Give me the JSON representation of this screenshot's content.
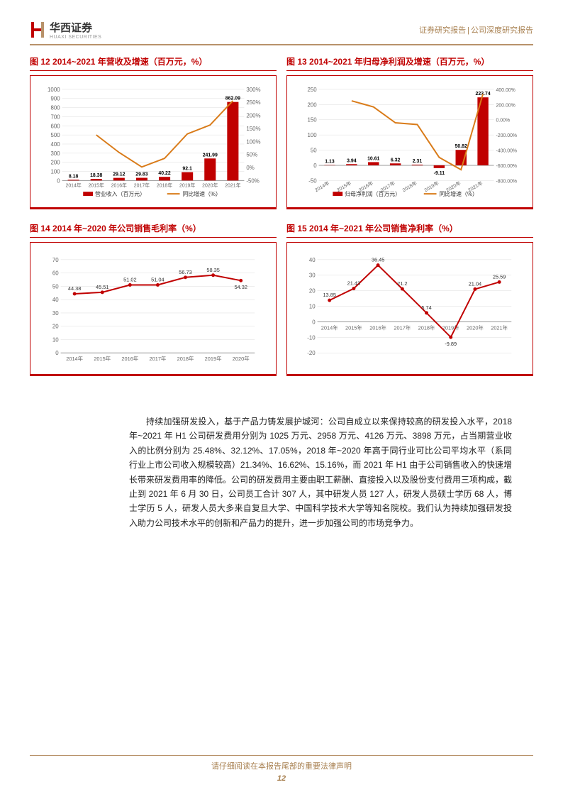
{
  "header": {
    "company_name": "华西证券",
    "company_en": "HUAXI SECURITIES",
    "right_1": "证券研究报告",
    "right_2": "公司深度研究报告"
  },
  "chart12": {
    "title": "图 12 2014~2021 年营收及增速（百万元，%）",
    "categories": [
      "2014年",
      "2015年",
      "2016年",
      "2017年",
      "2018年",
      "2019年",
      "2020年",
      "2021年"
    ],
    "bars": [
      8.18,
      18.38,
      29.12,
      29.83,
      40.22,
      92.1,
      241.99,
      862.09
    ],
    "bar_labels": [
      "8.18",
      "18.38",
      "29.12",
      "29.83",
      "40.22",
      "92.1",
      "241.99",
      "862.09"
    ],
    "y_left_max": 1000,
    "y_left_step": 100,
    "y_right_max": 300,
    "y_right_min": -50,
    "y_right_step": 50,
    "line": [
      null,
      125,
      58,
      2,
      35,
      129,
      163,
      256
    ],
    "bar_color": "#C00000",
    "line_color": "#D97B19",
    "legend": [
      "营业收入（百万元）",
      "同比增速（%）"
    ]
  },
  "chart13": {
    "title": "图 13 2014~2021 年归母净利润及增速（百万元，%）",
    "categories": [
      "2014年",
      "2015年",
      "2016年",
      "2017年",
      "2018年",
      "2019年",
      "2020年",
      "2021年"
    ],
    "bars": [
      1.13,
      3.94,
      10.61,
      6.32,
      2.31,
      -9.11,
      50.82,
      223.74
    ],
    "bar_labels": [
      "1.13",
      "3.94",
      "10.61",
      "6.32",
      "2.31",
      "-9.11",
      "50.82",
      "223.74"
    ],
    "y_left_max": 250,
    "y_left_min": -50,
    "y_left_step": 50,
    "y_right_max": 400,
    "y_right_min": -800,
    "y_right_step": 200,
    "line": [
      null,
      249,
      169,
      -40,
      -63,
      -495,
      -658,
      340
    ],
    "bar_color": "#C00000",
    "line_color": "#D97B19",
    "legend": [
      "归母净利润（百万元）",
      "同比增速（%）"
    ]
  },
  "chart14": {
    "title": "图 14 2014 年~2020 年公司销售毛利率（%）",
    "categories": [
      "2014年",
      "2015年",
      "2016年",
      "2017年",
      "2018年",
      "2019年",
      "2020年"
    ],
    "values": [
      44.38,
      45.51,
      51.02,
      51.04,
      56.73,
      58.35,
      54.32
    ],
    "labels": [
      "44.38",
      "45.51",
      "51.02",
      "51.04",
      "56.73",
      "58.35",
      "54.32"
    ],
    "y_max": 70,
    "y_step": 10,
    "line_color": "#C00000"
  },
  "chart15": {
    "title": "图 15 2014 年~2021 年公司销售净利率（%）",
    "categories": [
      "2014年",
      "2015年",
      "2016年",
      "2017年",
      "2018年",
      "2019年",
      "2020年",
      "2021年"
    ],
    "values": [
      13.85,
      21.43,
      36.45,
      21.2,
      5.74,
      -9.89,
      21.04,
      25.59
    ],
    "labels": [
      "13.85",
      "21.43",
      "36.45",
      "21.2",
      "5.74",
      "-9.89",
      "21.04",
      "25.59"
    ],
    "y_max": 40,
    "y_min": -20,
    "y_step": 10,
    "line_color": "#C00000"
  },
  "body_text": "持续加强研发投入，基于产品力铸发展护城河：公司自成立以来保持较高的研发投入水平，2018 年~2021 年 H1 公司研发费用分别为 1025 万元、2958 万元、4126 万元、3898 万元，占当期营业收入的比例分别为 25.48%、32.12%、17.05%，2018 年~2020 年高于同行业可比公司平均水平（系同行业上市公司收入规模较高）21.34%、16.62%、15.16%，而 2021 年 H1 由于公司销售收入的快速增长带来研发费用率的降低。公司的研发费用主要由职工薪酬、直接投入以及股份支付费用三项构成，截止到 2021 年 6 月 30 日，公司员工合计 307 人，其中研发人员 127 人，研发人员硕士学历 68 人，博士学历 5 人，研发人员大多来自复旦大学、中国科学技术大学等知名院校。我们认为持续加强研发投入助力公司技术水平的创新和产品力的提升，进一步加强公司的市场竞争力。",
  "footer": {
    "disclaimer": "请仔细阅读在本报告尾部的重要法律声明",
    "page": "12"
  }
}
